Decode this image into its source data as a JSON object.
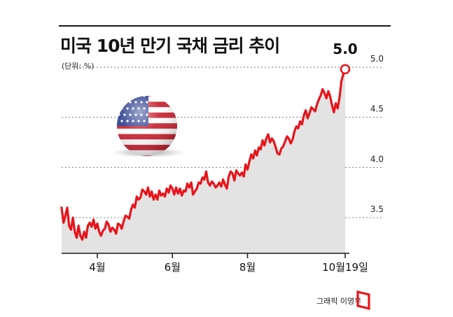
{
  "title": "미국 10년 만기 국채 금리 추이",
  "unit_label": "(단위: %)",
  "credit": "그래픽 이영우",
  "colors": {
    "line": "#e8141b",
    "area": "#e3e3e3",
    "grid": "#777777"
  },
  "flag_icon": "us-flag-icon",
  "logo_icon": "red-logo-icon",
  "chart_data": {
    "type": "area",
    "title": "미국 10년 만기 국채 금리 추이",
    "xlabel": "",
    "ylabel": "",
    "ylim": [
      3.2,
      5.1
    ],
    "yticks": [
      3.5,
      4.0,
      4.5,
      5.0
    ],
    "ytick_labels": [
      "3.5",
      "4.0",
      "4.5",
      "5.0"
    ],
    "grid": true,
    "x_tick_labels": [
      {
        "label": "4월",
        "x": 4.0
      },
      {
        "label": "6월",
        "x": 6.0
      },
      {
        "label": "8월",
        "x": 8.0
      },
      {
        "label": "10월19일",
        "x": 10.6
      }
    ],
    "annotation": {
      "text": "5.0",
      "x": 10.6,
      "y": 4.98
    },
    "series": [
      {
        "x": [
          3.05,
          3.1,
          3.15,
          3.2,
          3.25,
          3.3,
          3.35,
          3.4,
          3.45,
          3.5,
          3.55,
          3.6,
          3.65,
          3.7,
          3.75,
          3.8,
          3.85,
          3.9,
          3.95,
          4.0,
          4.05,
          4.1,
          4.15,
          4.2,
          4.25,
          4.3,
          4.35,
          4.4,
          4.45,
          4.5,
          4.55,
          4.6,
          4.65,
          4.7,
          4.75,
          4.8,
          4.85,
          4.9,
          4.95,
          5.0,
          5.05,
          5.1,
          5.15,
          5.2,
          5.25,
          5.3,
          5.35,
          5.4,
          5.45,
          5.5,
          5.55,
          5.6,
          5.65,
          5.7,
          5.75,
          5.8,
          5.85,
          5.9,
          5.95,
          6.0,
          6.05,
          6.1,
          6.15,
          6.2,
          6.25,
          6.3,
          6.35,
          6.4,
          6.45,
          6.5,
          6.55,
          6.6,
          6.65,
          6.7,
          6.75,
          6.8,
          6.85,
          6.9,
          6.95,
          7.0,
          7.05,
          7.1,
          7.15,
          7.2,
          7.25,
          7.3,
          7.35,
          7.4,
          7.45,
          7.5,
          7.55,
          7.6,
          7.65,
          7.7,
          7.75,
          7.8,
          7.85,
          7.9,
          7.95,
          8.0,
          8.05,
          8.1,
          8.15,
          8.2,
          8.25,
          8.3,
          8.35,
          8.4,
          8.45,
          8.5,
          8.55,
          8.6,
          8.65,
          8.7,
          8.75,
          8.8,
          8.85,
          8.9,
          8.95,
          9.0,
          9.05,
          9.1,
          9.15,
          9.2,
          9.25,
          9.3,
          9.35,
          9.4,
          9.45,
          9.5,
          9.55,
          9.6,
          9.65,
          9.7,
          9.75,
          9.8,
          9.85,
          9.9,
          9.95,
          10.0,
          10.05,
          10.1,
          10.15,
          10.2,
          10.25,
          10.3,
          10.35,
          10.4,
          10.45,
          10.5,
          10.55,
          10.6
        ],
        "values": [
          3.6,
          3.45,
          3.52,
          3.6,
          3.42,
          3.38,
          3.5,
          3.36,
          3.3,
          3.42,
          3.32,
          3.28,
          3.36,
          3.3,
          3.42,
          3.45,
          3.41,
          3.48,
          3.39,
          3.44,
          3.36,
          3.32,
          3.37,
          3.39,
          3.46,
          3.43,
          3.36,
          3.4,
          3.38,
          3.34,
          3.44,
          3.43,
          3.39,
          3.46,
          3.52,
          3.51,
          3.49,
          3.58,
          3.63,
          3.6,
          3.71,
          3.68,
          3.7,
          3.78,
          3.76,
          3.73,
          3.8,
          3.71,
          3.76,
          3.68,
          3.73,
          3.68,
          3.77,
          3.72,
          3.74,
          3.71,
          3.79,
          3.75,
          3.82,
          3.79,
          3.73,
          3.8,
          3.74,
          3.79,
          3.72,
          3.77,
          3.76,
          3.84,
          3.8,
          3.85,
          3.73,
          3.76,
          3.79,
          3.85,
          3.84,
          3.9,
          3.88,
          3.96,
          3.85,
          3.82,
          3.86,
          3.84,
          3.8,
          3.82,
          3.85,
          3.81,
          3.88,
          3.83,
          3.79,
          3.91,
          3.96,
          3.94,
          3.87,
          3.97,
          3.94,
          3.92,
          3.95,
          3.91,
          4.03,
          3.98,
          4.06,
          4.13,
          4.09,
          4.17,
          4.12,
          4.2,
          4.18,
          4.27,
          4.22,
          4.29,
          4.33,
          4.25,
          4.29,
          4.26,
          4.2,
          4.14,
          4.13,
          4.19,
          4.21,
          4.26,
          4.31,
          4.29,
          4.24,
          4.28,
          4.36,
          4.41,
          4.39,
          4.46,
          4.43,
          4.52,
          4.57,
          4.49,
          4.54,
          4.6,
          4.58,
          4.56,
          4.63,
          4.68,
          4.72,
          4.78,
          4.74,
          4.69,
          4.76,
          4.71,
          4.62,
          4.55,
          4.64,
          4.59,
          4.7,
          4.86,
          4.93,
          4.98
        ]
      }
    ]
  }
}
